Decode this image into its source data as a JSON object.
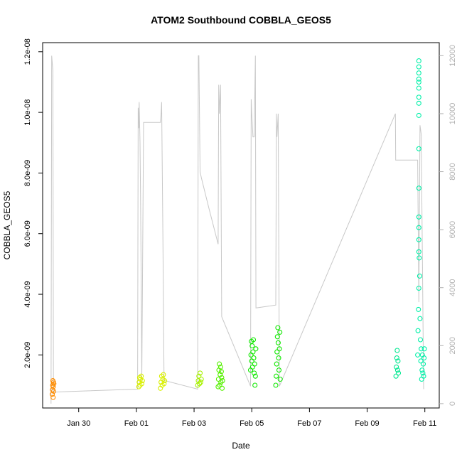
{
  "chart_data": {
    "type": "scatter",
    "title": "ATOM2 Southbound COBBLA_GEOS5",
    "xlabel": "Date",
    "ylabel": "COBBLA_GEOS5",
    "x_ticks": [
      "Jan 30",
      "Feb 01",
      "Feb 03",
      "Feb 05",
      "Feb 07",
      "Feb 09",
      "Feb 11"
    ],
    "y_ticks": [
      "2.0e-09",
      "4.0e-09",
      "6.0e-09",
      "8.0e-09",
      "1.0e-08",
      "1.2e-08"
    ],
    "y2_ticks": [
      "0",
      "2000",
      "4000",
      "6000",
      "8000",
      "10000",
      "12000"
    ],
    "xlim": [
      "2016-01-28T18:00",
      "2016-02-11T12:00"
    ],
    "ylim": [
      2.5e-10,
      1.23e-08
    ],
    "y2lim": [
      -150,
      12450
    ],
    "grid": false,
    "series": [
      {
        "color": "#FF8C00",
        "points": [
          [
            "2016-01-29T02:00",
            7e-10
          ],
          [
            "2016-01-29T02:10",
            8.5e-10
          ],
          [
            "2016-01-29T02:20",
            1e-09
          ],
          [
            "2016-01-29T02:30",
            1.15e-09
          ],
          [
            "2016-01-29T02:40",
            6e-10
          ],
          [
            "2016-01-29T02:50",
            9.5e-10
          ],
          [
            "2016-01-29T03:00",
            1.1e-09
          ],
          [
            "2016-01-29T03:10",
            8e-10
          ],
          [
            "2016-01-29T03:20",
            1.05e-09
          ]
        ]
      },
      {
        "color": "#D9F000",
        "points": [
          [
            "2016-02-01T02:00",
            9.5e-10
          ],
          [
            "2016-02-01T02:20",
            1.1e-09
          ],
          [
            "2016-02-01T02:40",
            1.25e-09
          ],
          [
            "2016-02-01T03:00",
            1e-09
          ],
          [
            "2016-02-01T03:20",
            1.2e-09
          ],
          [
            "2016-02-01T04:00",
            1.3e-09
          ],
          [
            "2016-02-01T04:30",
            1.05e-09
          ],
          [
            "2016-02-01T05:00",
            1.15e-09
          ],
          [
            "2016-02-01T20:00",
            9e-10
          ],
          [
            "2016-02-01T20:30",
            1.1e-09
          ],
          [
            "2016-02-01T21:00",
            1.3e-09
          ],
          [
            "2016-02-01T21:30",
            1e-09
          ],
          [
            "2016-02-01T22:00",
            1.2e-09
          ],
          [
            "2016-02-01T22:30",
            1.35e-09
          ],
          [
            "2016-02-01T23:00",
            1.05e-09
          ],
          [
            "2016-02-01T23:30",
            1.15e-09
          ]
        ]
      },
      {
        "color": "#A8F200",
        "points": [
          [
            "2016-02-03T03:00",
            1e-09
          ],
          [
            "2016-02-03T03:30",
            1.15e-09
          ],
          [
            "2016-02-03T04:00",
            1.3e-09
          ],
          [
            "2016-02-03T04:30",
            1.05e-09
          ],
          [
            "2016-02-03T05:00",
            1.4e-09
          ],
          [
            "2016-02-03T05:30",
            1.1e-09
          ],
          [
            "2016-02-03T06:00",
            1.2e-09
          ]
        ]
      },
      {
        "color": "#55F000",
        "points": [
          [
            "2016-02-03T20:00",
            9.5e-10
          ],
          [
            "2016-02-03T20:20",
            1.2e-09
          ],
          [
            "2016-02-03T20:40",
            1.5e-09
          ],
          [
            "2016-02-03T21:00",
            1.7e-09
          ],
          [
            "2016-02-03T21:20",
            1e-09
          ],
          [
            "2016-02-03T21:40",
            1.35e-09
          ],
          [
            "2016-02-03T22:00",
            1.6e-09
          ],
          [
            "2016-02-03T22:20",
            1.1e-09
          ],
          [
            "2016-02-03T22:40",
            1.45e-09
          ],
          [
            "2016-02-03T23:00",
            1.25e-09
          ],
          [
            "2016-02-03T23:20",
            9e-10
          ],
          [
            "2016-02-03T23:40",
            1.15e-09
          ]
        ]
      },
      {
        "color": "#10E800",
        "points": [
          [
            "2016-02-04T23:00",
            1.5e-09
          ],
          [
            "2016-02-04T23:20",
            2e-09
          ],
          [
            "2016-02-04T23:40",
            2.45e-09
          ],
          [
            "2016-02-05T00:00",
            1.8e-09
          ],
          [
            "2016-02-05T00:20",
            2.3e-09
          ],
          [
            "2016-02-05T00:40",
            1.6e-09
          ],
          [
            "2016-02-05T01:00",
            2.1e-09
          ],
          [
            "2016-02-05T01:20",
            2.5e-09
          ],
          [
            "2016-02-05T01:40",
            1.9e-09
          ],
          [
            "2016-02-05T02:00",
            1.4e-09
          ],
          [
            "2016-02-05T02:20",
            1.7e-09
          ],
          [
            "2016-02-05T02:40",
            1e-09
          ],
          [
            "2016-02-05T03:00",
            1.3e-09
          ],
          [
            "2016-02-05T03:20",
            2.2e-09
          ],
          [
            "2016-02-05T20:00",
            1e-09
          ],
          [
            "2016-02-05T20:20",
            1.3e-09
          ],
          [
            "2016-02-05T20:40",
            1.7e-09
          ],
          [
            "2016-02-05T21:00",
            2.1e-09
          ],
          [
            "2016-02-05T21:20",
            2.6e-09
          ],
          [
            "2016-02-05T21:40",
            2.9e-09
          ],
          [
            "2016-02-05T22:00",
            2.4e-09
          ],
          [
            "2016-02-05T22:20",
            1.9e-09
          ],
          [
            "2016-02-05T22:40",
            1.5e-09
          ],
          [
            "2016-02-05T23:00",
            2.2e-09
          ],
          [
            "2016-02-05T23:20",
            2.75e-09
          ],
          [
            "2016-02-05T23:40",
            1.2e-09
          ]
        ]
      },
      {
        "color": "#00E890",
        "points": [
          [
            "2016-02-10T00:00",
            1.3e-09
          ],
          [
            "2016-02-10T00:20",
            1.6e-09
          ],
          [
            "2016-02-10T00:40",
            1.9e-09
          ],
          [
            "2016-02-10T01:00",
            2.15e-09
          ],
          [
            "2016-02-10T01:20",
            1.5e-09
          ],
          [
            "2016-02-10T01:40",
            1.8e-09
          ],
          [
            "2016-02-10T02:00",
            1.4e-09
          ]
        ]
      },
      {
        "color": "#00F0A8",
        "points": [
          [
            "2016-02-10T18:00",
            2e-09
          ],
          [
            "2016-02-10T18:20",
            2.8e-09
          ],
          [
            "2016-02-10T18:40",
            3.5e-09
          ],
          [
            "2016-02-10T19:00",
            4.2e-09
          ],
          [
            "2016-02-10T19:20",
            5.2e-09
          ],
          [
            "2016-02-10T19:40",
            4.6e-09
          ],
          [
            "2016-02-10T20:00",
            3.2e-09
          ],
          [
            "2016-02-10T20:20",
            2.5e-09
          ],
          [
            "2016-02-10T20:40",
            1.8e-09
          ],
          [
            "2016-02-10T21:00",
            2.2e-09
          ],
          [
            "2016-02-10T21:20",
            1.2e-09
          ],
          [
            "2016-02-10T21:40",
            1.5e-09
          ],
          [
            "2016-02-10T22:00",
            2e-09
          ],
          [
            "2016-02-10T22:20",
            1.4e-09
          ],
          [
            "2016-02-10T22:40",
            1.7e-09
          ],
          [
            "2016-02-10T23:00",
            1.3e-09
          ],
          [
            "2016-02-10T23:20",
            1.9e-09
          ],
          [
            "2016-02-10T23:40",
            2.2e-09
          ],
          [
            "2016-02-10T19:00",
            5.4e-09
          ],
          [
            "2016-02-10T19:00",
            5.8e-09
          ],
          [
            "2016-02-10T19:00",
            6.2e-09
          ],
          [
            "2016-02-10T19:00",
            6.55e-09
          ],
          [
            "2016-02-10T19:00",
            7.5e-09
          ],
          [
            "2016-02-10T19:00",
            8.8e-09
          ],
          [
            "2016-02-10T19:00",
            9.9e-09
          ],
          [
            "2016-02-10T19:00",
            1.03e-08
          ],
          [
            "2016-02-10T19:00",
            1.05e-08
          ],
          [
            "2016-02-10T19:00",
            1.08e-08
          ],
          [
            "2016-02-10T19:00",
            1.1e-08
          ],
          [
            "2016-02-10T19:00",
            1.11e-08
          ],
          [
            "2016-02-10T19:00",
            1.13e-08
          ],
          [
            "2016-02-10T19:00",
            1.15e-08
          ],
          [
            "2016-02-10T19:00",
            1.17e-08
          ]
        ]
      }
    ],
    "secondary_line": {
      "color": "#c8c8c8",
      "points": [
        [
          "2016-01-29T01:00",
          0
        ],
        [
          "2016-01-29T01:30",
          12000
        ],
        [
          "2016-01-29T02:30",
          11500
        ],
        [
          "2016-01-29T03:00",
          400
        ],
        [
          "2016-02-01T01:00",
          500
        ],
        [
          "2016-02-01T01:30",
          10200
        ],
        [
          "2016-02-01T02:00",
          9500
        ],
        [
          "2016-02-01T02:20",
          10400
        ],
        [
          "2016-02-01T03:00",
          9000
        ],
        [
          "2016-02-01T03:30",
          7000
        ],
        [
          "2016-02-01T04:00",
          4000
        ],
        [
          "2016-02-01T04:30",
          800
        ],
        [
          "2016-02-01T06:00",
          9700
        ],
        [
          "2016-02-01T20:00",
          9700
        ],
        [
          "2016-02-01T20:30",
          10000
        ],
        [
          "2016-02-01T21:00",
          10400
        ],
        [
          "2016-02-01T22:00",
          6000
        ],
        [
          "2016-02-01T23:00",
          800
        ],
        [
          "2016-02-03T03:00",
          500
        ],
        [
          "2016-02-03T03:30",
          12000
        ],
        [
          "2016-02-03T04:00",
          12000
        ],
        [
          "2016-02-03T05:00",
          8000
        ],
        [
          "2016-02-03T06:00",
          7800
        ],
        [
          "2016-02-03T12:00",
          6800
        ],
        [
          "2016-02-03T20:00",
          5500
        ],
        [
          "2016-02-03T20:30",
          11000
        ],
        [
          "2016-02-03T21:00",
          10000
        ],
        [
          "2016-02-03T22:00",
          11000
        ],
        [
          "2016-02-03T23:00",
          3000
        ],
        [
          "2016-02-04T23:00",
          600
        ],
        [
          "2016-02-04T23:30",
          10500
        ],
        [
          "2016-02-05T00:00",
          10000
        ],
        [
          "2016-02-05T01:00",
          9200
        ],
        [
          "2016-02-05T02:00",
          9200
        ],
        [
          "2016-02-05T03:00",
          12000
        ],
        [
          "2016-02-05T03:30",
          3300
        ],
        [
          "2016-02-05T20:00",
          3400
        ],
        [
          "2016-02-05T20:30",
          10000
        ],
        [
          "2016-02-05T21:00",
          9200
        ],
        [
          "2016-02-05T22:00",
          10000
        ],
        [
          "2016-02-05T23:00",
          600
        ],
        [
          "2016-02-09T23:30",
          10000
        ],
        [
          "2016-02-09T23:45",
          8400
        ],
        [
          "2016-02-10T18:00",
          8400
        ],
        [
          "2016-02-10T19:00",
          3500
        ],
        [
          "2016-02-10T20:00",
          9600
        ],
        [
          "2016-02-10T21:00",
          9300
        ],
        [
          "2016-02-10T22:00",
          5000
        ],
        [
          "2016-02-10T23:00",
          500
        ]
      ]
    }
  }
}
